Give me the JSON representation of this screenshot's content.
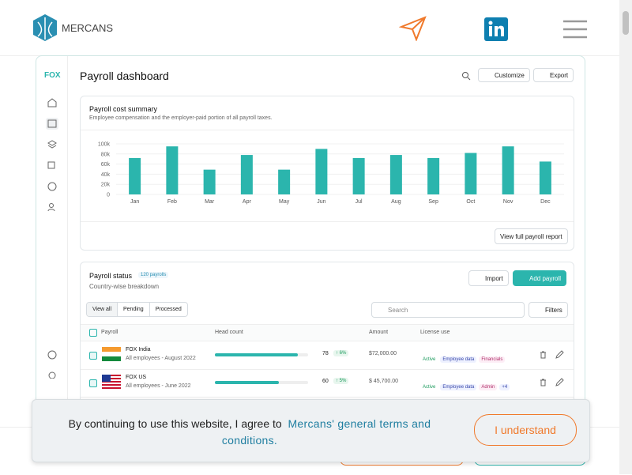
{
  "header": {
    "logo": "MERCANS"
  },
  "dashboard": {
    "brand": "FOX",
    "title": "Payroll dashboard",
    "buttons": [
      "Customize",
      "Export"
    ],
    "cost_card": {
      "title": "Payroll cost summary",
      "subtitle": "Employee compensation and the employer-paid portion of all payroll taxes.",
      "link": "View full payroll report"
    },
    "chart_data": {
      "type": "bar",
      "categories": [
        "Jan",
        "Feb",
        "Mar",
        "Apr",
        "May",
        "Jun",
        "Jul",
        "Aug",
        "Sep",
        "Oct",
        "Nov",
        "Dec"
      ],
      "values": [
        72000,
        95000,
        49000,
        78000,
        49000,
        90000,
        72000,
        78000,
        72000,
        82000,
        95000,
        65000
      ],
      "color": "#2bb5ad",
      "ylim": [
        0,
        100000
      ],
      "yticks": [
        0,
        {
          "value": 20000,
          "label": "20k"
        },
        {
          "value": 40000,
          "label": "40k"
        },
        {
          "value": 60000,
          "label": "60k"
        },
        {
          "value": 80000,
          "label": "80k"
        },
        {
          "value": 100000,
          "label": "100k"
        }
      ],
      "grid": true
    },
    "status_card": {
      "title": "Payroll status",
      "badge": "120 payrolls",
      "subtitle": "Country-wise breakdown",
      "buttons": [
        "Import",
        "Add payroll"
      ],
      "tabs": [
        "View all",
        "Pending",
        "Processed"
      ],
      "search": "Search",
      "filters": "Filters",
      "columns": [
        "Payroll",
        "Head count",
        "Amount",
        "License use"
      ],
      "rows": [
        {
          "name": "FOX India",
          "period": "All employees - August 2022",
          "head_count": 78,
          "change": "↑ 6%",
          "amount": "$72,000.00",
          "licenses": [
            "Active",
            "Employee data",
            "Financials"
          ]
        },
        {
          "name": "FOX US",
          "period": "All employees - June 2022",
          "head_count": 60,
          "change": "↑ 5%",
          "amount": "$ 45,700.00",
          "licenses": [
            "Active",
            "Employee data",
            "Admin",
            "+4"
          ]
        }
      ]
    }
  },
  "cookie": {
    "text": "By continuing to use this website, I agree to",
    "link": "Mercans' general terms and conditions.",
    "button": "I understand"
  }
}
